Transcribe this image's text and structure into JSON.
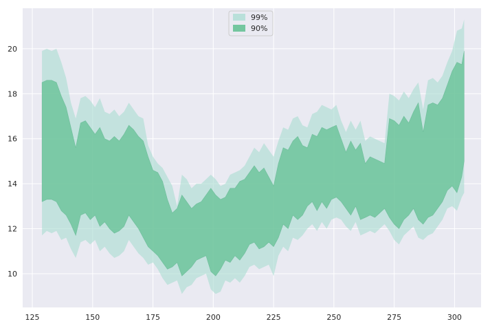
{
  "colors": {
    "figure_background": "#ffffff",
    "plot_background": "#eaeaf2",
    "grid": "#ffffff",
    "band_99": "#a8dcd1",
    "band_90": "#5fbf90",
    "band_90_edge": "#4aa97d"
  },
  "chart_data": {
    "type": "area",
    "title": "",
    "xlabel": "",
    "ylabel": "",
    "xlim": [
      121,
      311
    ],
    "ylim": [
      8.5,
      21.8
    ],
    "grid": true,
    "legend_placement": "upper-center",
    "x_ticks": [
      125,
      150,
      175,
      200,
      225,
      250,
      275,
      300
    ],
    "y_ticks": [
      10,
      12,
      14,
      16,
      18,
      20
    ],
    "x": [
      129,
      131,
      133,
      135,
      137,
      139,
      141,
      143,
      145,
      147,
      149,
      151,
      153,
      155,
      157,
      159,
      161,
      163,
      165,
      167,
      169,
      171,
      173,
      175,
      177,
      179,
      181,
      183,
      185,
      187,
      189,
      191,
      193,
      195,
      197,
      199,
      201,
      203,
      205,
      207,
      209,
      211,
      213,
      215,
      217,
      219,
      221,
      223,
      225,
      227,
      229,
      231,
      233,
      235,
      237,
      239,
      241,
      243,
      245,
      247,
      249,
      251,
      253,
      255,
      257,
      259,
      261,
      263,
      265,
      267,
      269,
      271,
      273,
      275,
      277,
      279,
      281,
      283,
      285,
      287,
      289,
      291,
      293,
      295,
      297,
      299,
      301,
      303,
      304
    ],
    "series": [
      {
        "name": "99%",
        "upper": [
          19.9,
          20.0,
          19.9,
          20.0,
          19.4,
          18.7,
          17.6,
          16.9,
          17.8,
          17.9,
          17.7,
          17.4,
          17.8,
          17.2,
          17.1,
          17.3,
          17.0,
          17.2,
          17.6,
          17.3,
          17.0,
          16.9,
          15.7,
          15.2,
          14.9,
          14.7,
          14.3,
          13.9,
          13.0,
          14.4,
          14.2,
          13.8,
          14.0,
          14.0,
          14.2,
          14.4,
          14.2,
          13.9,
          14.0,
          14.4,
          14.5,
          14.6,
          14.8,
          15.2,
          15.6,
          15.4,
          15.8,
          15.5,
          15.2,
          15.9,
          16.5,
          16.4,
          16.9,
          17.0,
          16.6,
          16.5,
          17.1,
          17.2,
          17.5,
          17.4,
          17.3,
          17.5,
          16.8,
          16.3,
          16.8,
          16.4,
          16.8,
          15.9,
          16.1,
          16.0,
          15.9,
          15.8,
          18.0,
          17.9,
          17.7,
          18.1,
          17.8,
          18.2,
          18.5,
          17.3,
          18.6,
          18.7,
          18.5,
          18.8,
          19.4,
          19.9,
          20.8,
          20.9,
          21.3
        ],
        "lower": [
          11.7,
          11.9,
          11.8,
          11.9,
          11.5,
          11.6,
          11.1,
          10.7,
          11.4,
          11.5,
          11.3,
          11.5,
          11.0,
          11.2,
          10.9,
          10.7,
          10.8,
          11.0,
          11.5,
          11.2,
          10.9,
          10.7,
          10.4,
          10.5,
          10.2,
          9.8,
          9.5,
          9.6,
          9.7,
          9.1,
          9.4,
          9.5,
          9.8,
          9.9,
          10.0,
          9.3,
          9.1,
          9.2,
          9.7,
          9.6,
          9.8,
          9.6,
          9.9,
          10.3,
          10.4,
          10.2,
          10.3,
          10.4,
          9.9,
          10.8,
          11.2,
          11.0,
          11.6,
          11.5,
          11.7,
          12.0,
          12.2,
          11.9,
          12.3,
          12.0,
          12.4,
          12.5,
          12.4,
          12.1,
          11.9,
          12.3,
          11.7,
          11.8,
          11.9,
          11.8,
          12.0,
          12.2,
          11.9,
          11.5,
          11.3,
          11.7,
          11.9,
          12.1,
          11.6,
          11.5,
          11.7,
          11.8,
          12.1,
          12.4,
          12.9,
          13.0,
          12.8,
          13.4,
          13.6
        ]
      },
      {
        "name": "90%",
        "upper": [
          18.5,
          18.6,
          18.6,
          18.5,
          17.9,
          17.4,
          16.5,
          15.6,
          16.7,
          16.8,
          16.5,
          16.2,
          16.5,
          16.0,
          15.9,
          16.1,
          15.9,
          16.2,
          16.6,
          16.4,
          16.1,
          15.9,
          15.2,
          14.6,
          14.5,
          14.1,
          13.3,
          12.7,
          12.9,
          13.5,
          13.2,
          12.9,
          13.1,
          13.2,
          13.5,
          13.8,
          13.5,
          13.3,
          13.4,
          13.8,
          13.8,
          14.1,
          14.2,
          14.5,
          14.8,
          14.5,
          14.7,
          14.3,
          13.9,
          14.9,
          15.6,
          15.5,
          15.9,
          16.1,
          15.7,
          15.6,
          16.2,
          16.1,
          16.5,
          16.4,
          16.5,
          16.6,
          16.0,
          15.4,
          15.9,
          15.5,
          15.8,
          14.9,
          15.2,
          15.1,
          15.0,
          14.9,
          16.9,
          16.8,
          16.6,
          17.0,
          16.7,
          17.2,
          17.6,
          16.3,
          17.5,
          17.6,
          17.5,
          17.8,
          18.4,
          19.0,
          19.4,
          19.3,
          19.9
        ],
        "lower": [
          13.2,
          13.3,
          13.3,
          13.2,
          12.8,
          12.6,
          12.2,
          11.7,
          12.6,
          12.7,
          12.4,
          12.6,
          12.1,
          12.3,
          12.0,
          11.8,
          11.9,
          12.1,
          12.6,
          12.3,
          12.0,
          11.6,
          11.2,
          11.0,
          10.8,
          10.5,
          10.2,
          10.3,
          10.5,
          9.9,
          10.1,
          10.3,
          10.6,
          10.7,
          10.8,
          10.1,
          9.9,
          10.2,
          10.6,
          10.5,
          10.8,
          10.6,
          10.9,
          11.3,
          11.4,
          11.1,
          11.2,
          11.4,
          11.2,
          11.6,
          12.2,
          12.0,
          12.6,
          12.4,
          12.6,
          13.0,
          13.2,
          12.8,
          13.2,
          12.9,
          13.3,
          13.4,
          13.2,
          12.9,
          12.6,
          13.0,
          12.4,
          12.5,
          12.6,
          12.5,
          12.7,
          12.9,
          12.5,
          12.2,
          12.0,
          12.4,
          12.6,
          12.9,
          12.4,
          12.2,
          12.5,
          12.6,
          12.9,
          13.2,
          13.7,
          13.9,
          13.6,
          14.3,
          15.0
        ]
      }
    ]
  }
}
